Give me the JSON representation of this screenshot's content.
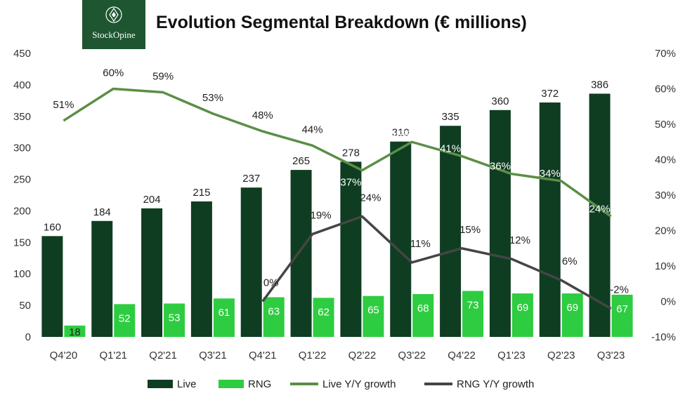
{
  "header": {
    "logo_text": "StockOpine",
    "title": "Evolution Segmental Breakdown (€ millions)"
  },
  "colors": {
    "live": "#0f3d22",
    "rng": "#2ecc40",
    "live_growth": "#5a8f46",
    "rng_growth": "#454545",
    "logo_bg": "#1e5631"
  },
  "chart_data": {
    "type": "bar",
    "categories": [
      "Q4'20",
      "Q1'21",
      "Q2'21",
      "Q3'21",
      "Q4'21",
      "Q1'22",
      "Q2'22",
      "Q3'22",
      "Q4'22",
      "Q1'23",
      "Q2'23",
      "Q3'23"
    ],
    "series": [
      {
        "name": "Live",
        "type": "bar",
        "axis": "left",
        "values": [
          160,
          184,
          204,
          215,
          237,
          265,
          278,
          310,
          335,
          360,
          372,
          386
        ]
      },
      {
        "name": "RNG",
        "type": "bar",
        "axis": "left",
        "values": [
          18,
          52,
          53,
          61,
          63,
          62,
          65,
          68,
          73,
          69,
          69,
          67
        ]
      },
      {
        "name": "Live Y/Y growth",
        "type": "line",
        "axis": "right",
        "values": [
          51,
          60,
          59,
          53,
          48,
          44,
          37,
          45,
          41,
          36,
          34,
          24
        ],
        "labels": [
          "51%",
          "60%",
          "59%",
          "53%",
          "48%",
          "44%",
          "37%",
          "45%",
          "41%",
          "36%",
          "34%",
          "24%"
        ]
      },
      {
        "name": "RNG Y/Y growth",
        "type": "line",
        "axis": "right",
        "values": [
          null,
          null,
          null,
          null,
          0,
          19,
          24,
          11,
          15,
          12,
          6,
          -2
        ],
        "labels": [
          "",
          "",
          "",
          "",
          "0%",
          "19%",
          "24%",
          "11%",
          "15%",
          "12%",
          "6%",
          "-2%"
        ]
      }
    ],
    "ylim_left": [
      0,
      450
    ],
    "yticks_left": [
      "0",
      "50",
      "100",
      "150",
      "200",
      "250",
      "300",
      "350",
      "400",
      "450"
    ],
    "ylim_right": [
      -10,
      70
    ],
    "yticks_right": [
      "-10%",
      "0%",
      "10%",
      "20%",
      "30%",
      "40%",
      "50%",
      "60%",
      "70%"
    ],
    "grid": false,
    "legend_position": "bottom"
  },
  "legend": {
    "live": "Live",
    "rng": "RNG",
    "live_growth": "Live Y/Y growth",
    "rng_growth": "RNG Y/Y growth"
  }
}
